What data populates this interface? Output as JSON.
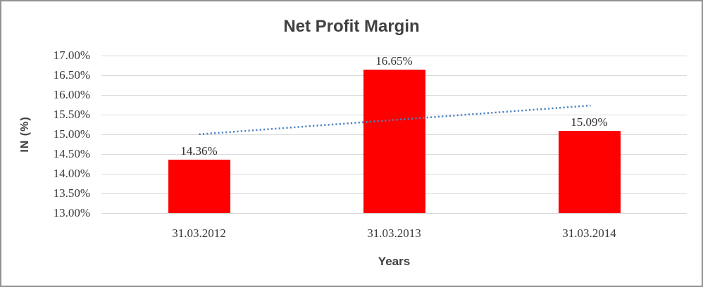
{
  "chart_data": {
    "type": "bar",
    "title": "Net Profit Margin",
    "categories": [
      "31.03.2012",
      "31.03.2013",
      "31.03.2014"
    ],
    "values": [
      14.36,
      16.65,
      15.09
    ],
    "data_labels": [
      "14.36%",
      "16.65%",
      "15.09%"
    ],
    "xlabel": "Years",
    "ylabel": "IN (%)",
    "ylim": [
      13.0,
      17.0
    ],
    "ytick_step": 0.5,
    "yticks": [
      {
        "value": 17.0,
        "label": "17.00%"
      },
      {
        "value": 16.5,
        "label": "16.50%"
      },
      {
        "value": 16.0,
        "label": "16.00%"
      },
      {
        "value": 15.5,
        "label": "15.50%"
      },
      {
        "value": 15.0,
        "label": "15.00%"
      },
      {
        "value": 14.5,
        "label": "14.50%"
      },
      {
        "value": 14.0,
        "label": "14.00%"
      },
      {
        "value": 13.5,
        "label": "13.50%"
      },
      {
        "value": 13.0,
        "label": "13.00%"
      }
    ],
    "grid": true,
    "legend": "none",
    "bar_color": "#FF0000",
    "trendline": {
      "type": "linear",
      "style": "dotted",
      "color": "#4A82C4"
    }
  }
}
